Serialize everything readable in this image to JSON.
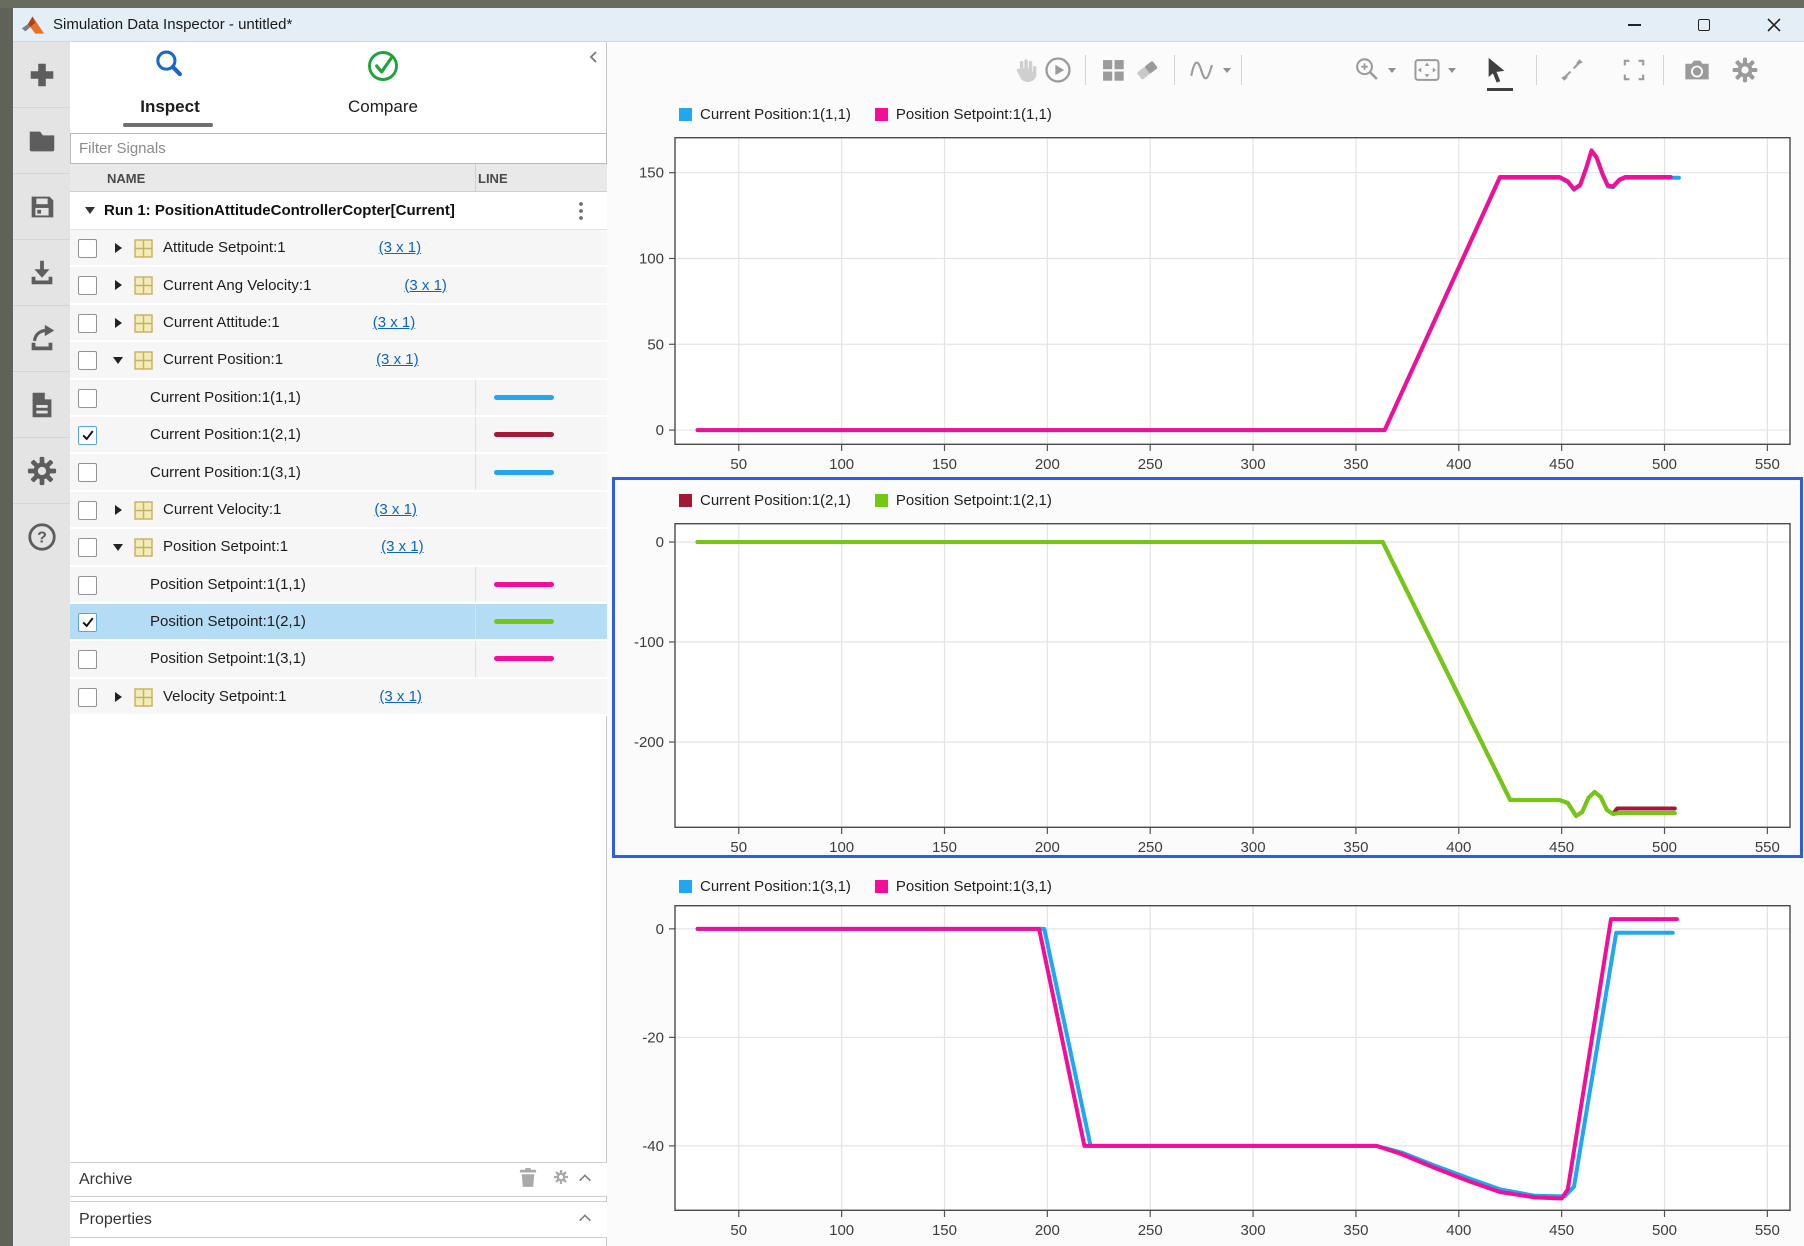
{
  "window": {
    "title": "Simulation Data Inspector - untitled*"
  },
  "tabs": {
    "inspect": "Inspect",
    "compare": "Compare"
  },
  "left_panel": {
    "filter_placeholder": "Filter Signals",
    "columns": {
      "name": "NAME",
      "line": "LINE"
    },
    "run": {
      "label": "Run 1: PositionAttitudeControllerCopter[Current]"
    },
    "archive_label": "Archive",
    "properties_label": "Properties",
    "tree": [
      {
        "label": "Attitude Setpoint:1",
        "dims": "3 x 1",
        "level": "parent",
        "expanded": false,
        "checked": false
      },
      {
        "label": "Current Ang Velocity:1",
        "dims": "3 x 1",
        "level": "parent",
        "expanded": false,
        "checked": false
      },
      {
        "label": "Current Attitude:1",
        "dims": "3 x 1",
        "level": "parent",
        "expanded": false,
        "checked": false
      },
      {
        "label": "Current Position:1",
        "dims": "3 x 1",
        "level": "parent",
        "expanded": true,
        "checked": false
      },
      {
        "label": "Current Position:1(1,1)",
        "level": "child",
        "checked": false,
        "line_color": "#1fa7f0"
      },
      {
        "label": "Current Position:1(2,1)",
        "level": "child",
        "checked": true,
        "line_color": "#a21835"
      },
      {
        "label": "Current Position:1(3,1)",
        "level": "child",
        "checked": false,
        "line_color": "#1fa7f0"
      },
      {
        "label": "Current Velocity:1",
        "dims": "3 x 1",
        "level": "parent",
        "expanded": false,
        "checked": false
      },
      {
        "label": "Position Setpoint:1",
        "dims": "3 x 1",
        "level": "parent",
        "expanded": true,
        "checked": false
      },
      {
        "label": "Position Setpoint:1(1,1)",
        "level": "child",
        "checked": false,
        "line_color": "#f30d98"
      },
      {
        "label": "Position Setpoint:1(2,1)",
        "level": "child",
        "checked": true,
        "selected": true,
        "line_color": "#72c912"
      },
      {
        "label": "Position Setpoint:1(3,1)",
        "level": "child",
        "checked": false,
        "line_color": "#f30d98"
      },
      {
        "label": "Velocity Setpoint:1",
        "dims": "3 x 1",
        "level": "parent",
        "expanded": false,
        "checked": false
      }
    ]
  },
  "sidebar_icons": [
    "add",
    "open-file",
    "save",
    "import",
    "export",
    "create-report",
    "preferences",
    "help"
  ],
  "plot_toolbar_icons": [
    "pan",
    "replay",
    "subplot-layout",
    "eraser",
    "signal-trace",
    "zoom-in",
    "fit-to-view",
    "pointer",
    "expand-plot",
    "fullscreen",
    "snapshot",
    "settings"
  ],
  "colors": {
    "selection_border": "#2f5be7",
    "selected_row_bg": "#b5dcf5",
    "inspect_icon": "#1669c9",
    "compare_icon": "#1da23c"
  },
  "chart_data": [
    {
      "type": "line",
      "selected": false,
      "legend": [
        {
          "label": "Current Position:1(1,1)",
          "color": "#1fa7f0"
        },
        {
          "label": "Position Setpoint:1(1,1)",
          "color": "#f30d98"
        }
      ],
      "x_ticks": [
        50,
        100,
        150,
        200,
        250,
        300,
        350,
        400,
        450,
        500,
        550
      ],
      "y_ticks": [
        0,
        50,
        100,
        150
      ],
      "x_range": [
        19,
        561
      ],
      "y_range": [
        -8.7,
        170.8
      ],
      "grid": true,
      "series": [
        {
          "name": "Current Position:1(1,1)",
          "color": "#1fa7f0",
          "points": [
            [
              30,
              0
            ],
            [
              364,
              0
            ],
            [
              420,
              147
            ],
            [
              449,
              147
            ],
            [
              453,
              144.5
            ],
            [
              456,
              140
            ],
            [
              459,
              142.5
            ],
            [
              462,
              152.5
            ],
            [
              464.5,
              162.5
            ],
            [
              467,
              158.5
            ],
            [
              470,
              148.5
            ],
            [
              472.5,
              142
            ],
            [
              475,
              141.5
            ],
            [
              478,
              145.5
            ],
            [
              481,
              147
            ],
            [
              507,
              147
            ]
          ]
        },
        {
          "name": "Position Setpoint:1(1,1)",
          "color": "#f30d98",
          "points": [
            [
              30,
              0
            ],
            [
              364,
              0
            ],
            [
              420,
              147.5
            ],
            [
              449,
              147.5
            ],
            [
              453,
              145
            ],
            [
              456,
              140.5
            ],
            [
              459,
              143
            ],
            [
              462,
              153
            ],
            [
              464.5,
              163
            ],
            [
              467,
              159
            ],
            [
              470,
              149
            ],
            [
              472.5,
              142.5
            ],
            [
              475,
              142
            ],
            [
              478,
              146
            ],
            [
              481,
              147.5
            ],
            [
              503,
              147.5
            ]
          ]
        }
      ]
    },
    {
      "type": "line",
      "selected": true,
      "legend": [
        {
          "label": "Current Position:1(2,1)",
          "color": "#a21835"
        },
        {
          "label": "Position Setpoint:1(2,1)",
          "color": "#72c912"
        }
      ],
      "x_ticks": [
        50,
        100,
        150,
        200,
        250,
        300,
        350,
        400,
        450,
        500,
        550
      ],
      "y_ticks": [
        0,
        -100,
        -200
      ],
      "x_range": [
        19,
        561
      ],
      "y_range": [
        -286,
        19
      ],
      "grid": true,
      "series": [
        {
          "name": "Current Position:1(2,1)",
          "color": "#a21835",
          "points": [
            [
              30,
              0
            ],
            [
              363,
              0
            ],
            [
              425,
              -258
            ],
            [
              449,
              -258
            ],
            [
              453,
              -261
            ],
            [
              457,
              -274
            ],
            [
              460,
              -270
            ],
            [
              463,
              -256
            ],
            [
              466,
              -250
            ],
            [
              469,
              -255
            ],
            [
              472,
              -268
            ],
            [
              475,
              -272
            ],
            [
              477,
              -266.5
            ],
            [
              505,
              -266.5
            ]
          ]
        },
        {
          "name": "Position Setpoint:1(2,1)",
          "color": "#72c912",
          "points": [
            [
              30,
              0
            ],
            [
              363,
              0
            ],
            [
              425,
              -258
            ],
            [
              449,
              -258
            ],
            [
              453,
              -261
            ],
            [
              457,
              -274
            ],
            [
              460,
              -270
            ],
            [
              463,
              -256
            ],
            [
              466,
              -250
            ],
            [
              469,
              -255
            ],
            [
              472,
              -268
            ],
            [
              475,
              -272
            ],
            [
              478,
              -271
            ],
            [
              505,
              -271
            ]
          ]
        }
      ]
    },
    {
      "type": "line",
      "selected": false,
      "legend": [
        {
          "label": "Current Position:1(3,1)",
          "color": "#1fa7f0"
        },
        {
          "label": "Position Setpoint:1(3,1)",
          "color": "#f30d98"
        }
      ],
      "x_ticks": [
        50,
        100,
        150,
        200,
        250,
        300,
        350,
        400,
        450,
        500,
        550
      ],
      "y_ticks": [
        0,
        -20,
        -40
      ],
      "x_range": [
        19,
        561
      ],
      "y_range": [
        -52,
        4.4
      ],
      "grid": true,
      "series": [
        {
          "name": "Current Position:1(3,1)",
          "color": "#1fa7f0",
          "points": [
            [
              30,
              0
            ],
            [
              198.5,
              0
            ],
            [
              221,
              -40
            ],
            [
              360,
              -40
            ],
            [
              372,
              -41.2
            ],
            [
              388,
              -43.6
            ],
            [
              405,
              -46
            ],
            [
              420,
              -48
            ],
            [
              437,
              -49.2
            ],
            [
              451.5,
              -49.3
            ],
            [
              456,
              -47.5
            ],
            [
              476.5,
              -0.7
            ],
            [
              504,
              -0.7
            ]
          ]
        },
        {
          "name": "Position Setpoint:1(3,1)",
          "color": "#f30d98",
          "points": [
            [
              30,
              0
            ],
            [
              196,
              0
            ],
            [
              218,
              -40
            ],
            [
              360,
              -40
            ],
            [
              372,
              -41.5
            ],
            [
              388,
              -44
            ],
            [
              405,
              -46.5
            ],
            [
              420,
              -48.5
            ],
            [
              437,
              -49.5
            ],
            [
              450,
              -49.7
            ],
            [
              453,
              -48
            ],
            [
              474,
              1.8
            ],
            [
              506,
              1.8
            ]
          ]
        }
      ]
    }
  ]
}
